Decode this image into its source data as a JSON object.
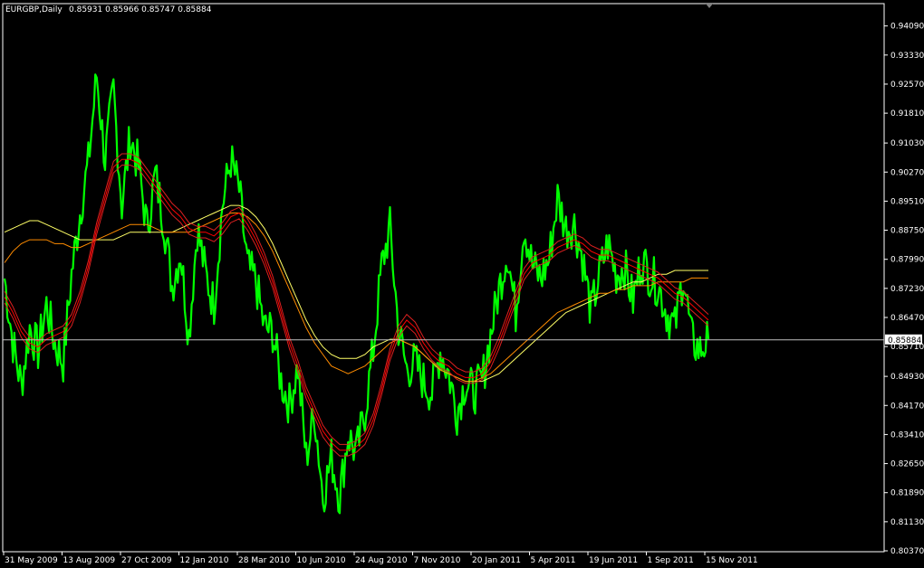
{
  "header": {
    "symbol": "EURGBP,Daily",
    "ohlc": "0.85931 0.85966 0.85747 0.85884"
  },
  "colors": {
    "background": "#000000",
    "frame": "#ffffff",
    "price": "#00ff00",
    "ma_fast": "#ff0000",
    "ma_slow_orange": "#ff8c00",
    "ma_slow_yellow": "#ffff66",
    "current_line": "#c0c0c0",
    "text": "#ffffff"
  },
  "chart_data": {
    "type": "line",
    "title": "",
    "ylim": [
      0.8037,
      0.9465
    ],
    "y_ticks": [
      "0.94090",
      "0.93330",
      "0.92570",
      "0.91810",
      "0.91030",
      "0.90270",
      "0.89510",
      "0.88750",
      "0.87990",
      "0.87230",
      "0.86470",
      "0.85710",
      "0.84930",
      "0.84170",
      "0.83410",
      "0.82650",
      "0.81890",
      "0.81130",
      "0.80370"
    ],
    "x_ticks": [
      "31 May 2009",
      "13 Aug 2009",
      "27 Oct 2009",
      "12 Jan 2010",
      "28 Mar 2010",
      "10 Jun 2010",
      "24 Aug 2010",
      "7 Nov 2010",
      "20 Jan 2011",
      "5 Apr 2011",
      "19 Jun 2011",
      "1 Sep 2011",
      "15 Nov 2011"
    ],
    "current_price": "0.85884",
    "grid": false,
    "series": [
      {
        "key": "price",
        "values": [
          0.875,
          0.858,
          0.847,
          0.862,
          0.856,
          0.868,
          0.858,
          0.853,
          0.876,
          0.892,
          0.905,
          0.928,
          0.906,
          0.924,
          0.894,
          0.912,
          0.904,
          0.888,
          0.902,
          0.89,
          0.873,
          0.882,
          0.86,
          0.888,
          0.876,
          0.868,
          0.894,
          0.906,
          0.898,
          0.878,
          0.874,
          0.862,
          0.861,
          0.848,
          0.842,
          0.852,
          0.828,
          0.84,
          0.818,
          0.828,
          0.818,
          0.834,
          0.829,
          0.84,
          0.856,
          0.878,
          0.888,
          0.862,
          0.851,
          0.853,
          0.848,
          0.845,
          0.856,
          0.85,
          0.84,
          0.848,
          0.845,
          0.848,
          0.86,
          0.872,
          0.882,
          0.866,
          0.889,
          0.878,
          0.875,
          0.88,
          0.896,
          0.888,
          0.889,
          0.88,
          0.866,
          0.876,
          0.884,
          0.876,
          0.878,
          0.869,
          0.88,
          0.876,
          0.873,
          0.866,
          0.862,
          0.876,
          0.859,
          0.856,
          0.859
        ]
      },
      {
        "key": "ma_fast",
        "values": [
          0.87,
          0.866,
          0.861,
          0.858,
          0.857,
          0.859,
          0.86,
          0.861,
          0.864,
          0.87,
          0.878,
          0.888,
          0.896,
          0.904,
          0.906,
          0.906,
          0.905,
          0.902,
          0.899,
          0.896,
          0.893,
          0.891,
          0.888,
          0.887,
          0.887,
          0.886,
          0.888,
          0.891,
          0.892,
          0.889,
          0.885,
          0.88,
          0.874,
          0.866,
          0.858,
          0.852,
          0.845,
          0.84,
          0.835,
          0.832,
          0.83,
          0.83,
          0.831,
          0.833,
          0.838,
          0.846,
          0.855,
          0.861,
          0.864,
          0.862,
          0.858,
          0.855,
          0.853,
          0.852,
          0.85,
          0.849,
          0.849,
          0.85,
          0.853,
          0.858,
          0.864,
          0.87,
          0.876,
          0.879,
          0.88,
          0.881,
          0.883,
          0.884,
          0.885,
          0.884,
          0.882,
          0.881,
          0.881,
          0.88,
          0.879,
          0.878,
          0.877,
          0.876,
          0.875,
          0.873,
          0.871,
          0.87,
          0.868,
          0.866,
          0.864
        ]
      },
      {
        "key": "ma_slow_orange",
        "values": [
          0.879,
          0.882,
          0.884,
          0.885,
          0.885,
          0.885,
          0.884,
          0.884,
          0.883,
          0.883,
          0.884,
          0.885,
          0.886,
          0.887,
          0.888,
          0.889,
          0.889,
          0.889,
          0.888,
          0.887,
          0.887,
          0.887,
          0.887,
          0.888,
          0.889,
          0.89,
          0.891,
          0.892,
          0.892,
          0.891,
          0.889,
          0.886,
          0.882,
          0.877,
          0.872,
          0.867,
          0.862,
          0.858,
          0.855,
          0.852,
          0.851,
          0.85,
          0.851,
          0.852,
          0.854,
          0.856,
          0.858,
          0.859,
          0.858,
          0.857,
          0.855,
          0.853,
          0.851,
          0.85,
          0.849,
          0.848,
          0.848,
          0.849,
          0.85,
          0.852,
          0.854,
          0.856,
          0.858,
          0.86,
          0.862,
          0.864,
          0.866,
          0.867,
          0.868,
          0.869,
          0.87,
          0.871,
          0.871,
          0.872,
          0.872,
          0.873,
          0.873,
          0.873,
          0.874,
          0.874,
          0.874,
          0.874,
          0.875,
          0.875,
          0.875
        ]
      },
      {
        "key": "ma_slow_yellow",
        "values": [
          0.887,
          0.888,
          0.889,
          0.89,
          0.89,
          0.889,
          0.888,
          0.887,
          0.886,
          0.885,
          0.885,
          0.885,
          0.885,
          0.885,
          0.886,
          0.887,
          0.887,
          0.887,
          0.887,
          0.887,
          0.887,
          0.888,
          0.889,
          0.89,
          0.891,
          0.892,
          0.893,
          0.894,
          0.894,
          0.893,
          0.891,
          0.888,
          0.884,
          0.879,
          0.874,
          0.869,
          0.864,
          0.86,
          0.857,
          0.855,
          0.854,
          0.854,
          0.854,
          0.855,
          0.857,
          0.858,
          0.859,
          0.859,
          0.858,
          0.857,
          0.855,
          0.853,
          0.851,
          0.85,
          0.849,
          0.848,
          0.848,
          0.848,
          0.849,
          0.85,
          0.852,
          0.854,
          0.856,
          0.858,
          0.86,
          0.862,
          0.864,
          0.866,
          0.867,
          0.868,
          0.869,
          0.87,
          0.871,
          0.872,
          0.873,
          0.874,
          0.874,
          0.875,
          0.876,
          0.876,
          0.877,
          0.877,
          0.877,
          0.877,
          0.877
        ]
      }
    ]
  }
}
